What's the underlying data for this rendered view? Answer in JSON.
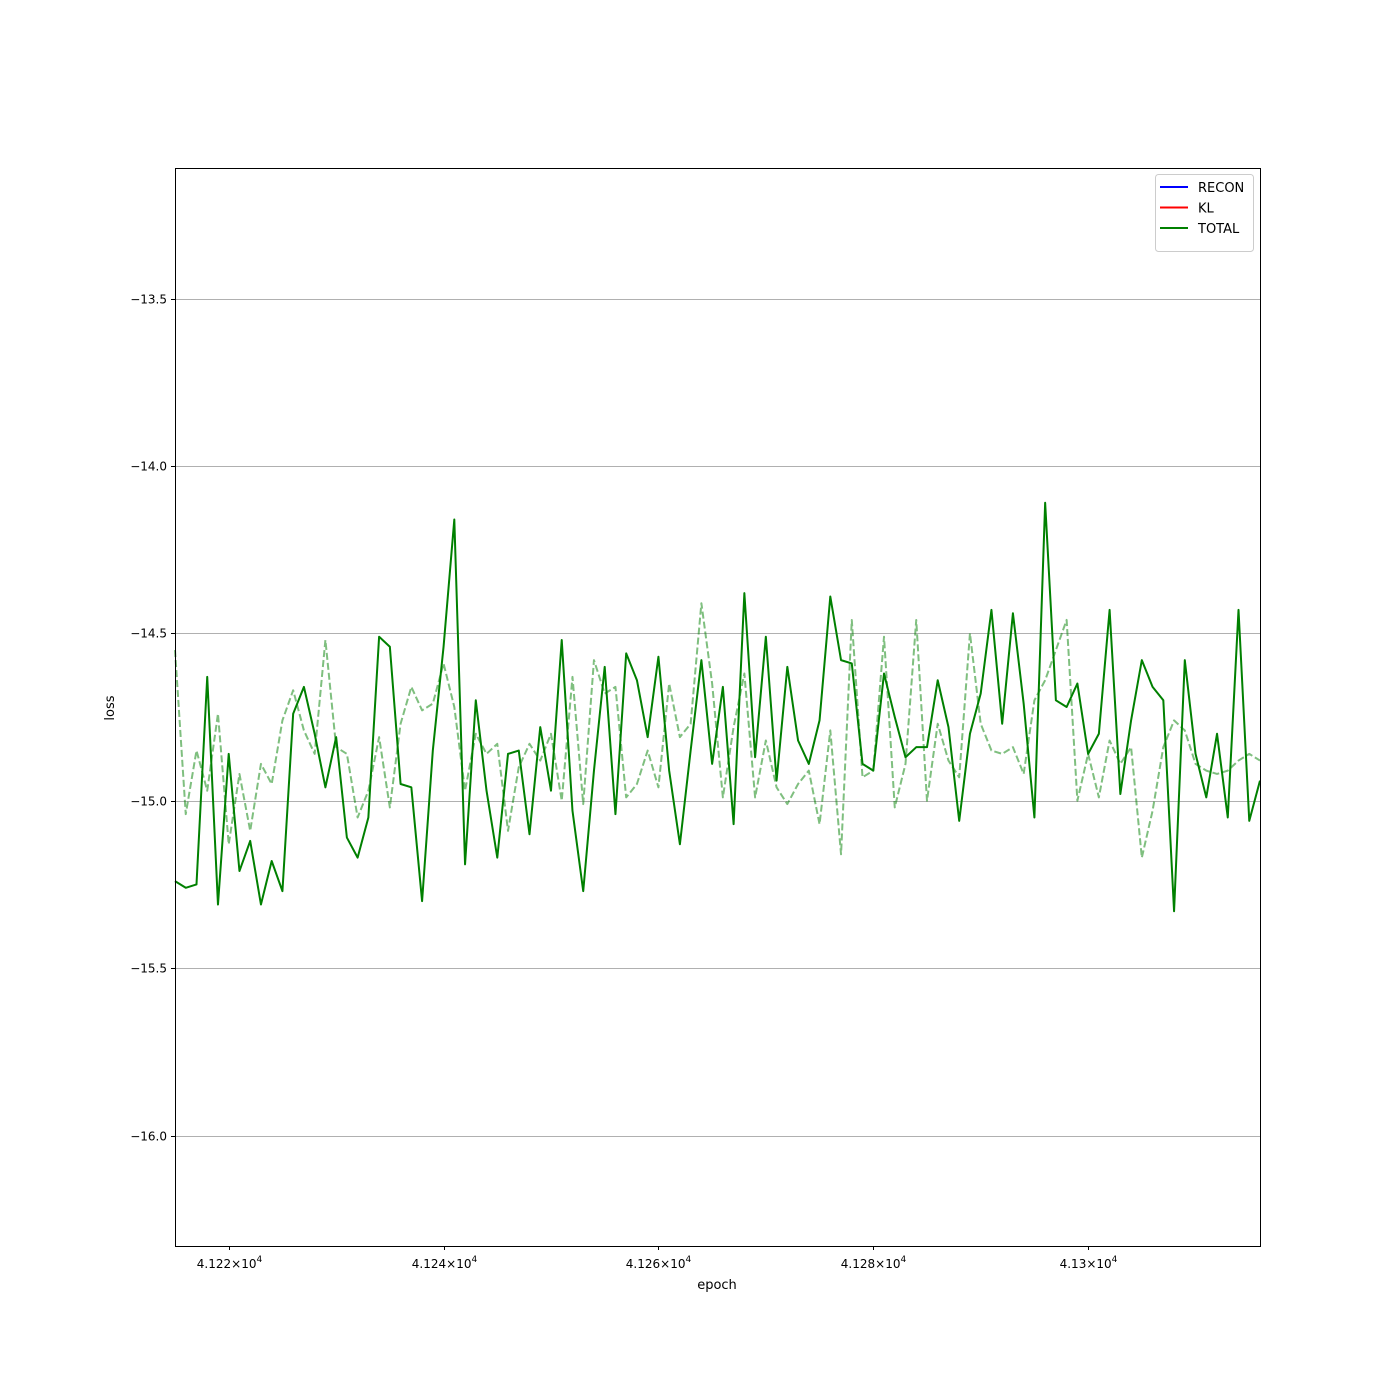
{
  "chart_data": {
    "type": "line",
    "xlabel": "epoch",
    "ylabel": "loss",
    "xlim": [
      41215,
      41316
    ],
    "ylim": [
      -16.33,
      -13.11
    ],
    "grid": "horizontal",
    "legend_position": "top-right",
    "legend": [
      {
        "label": "RECON",
        "color": "#0000ff"
      },
      {
        "label": "KL",
        "color": "#ff0000"
      },
      {
        "label": "TOTAL",
        "color": "#008000"
      }
    ],
    "x_ticks": [
      {
        "value": 41220,
        "mantissa": "4.122",
        "exponent": "4"
      },
      {
        "value": 41240,
        "mantissa": "4.124",
        "exponent": "4"
      },
      {
        "value": 41260,
        "mantissa": "4.126",
        "exponent": "4"
      },
      {
        "value": 41280,
        "mantissa": "4.128",
        "exponent": "4"
      },
      {
        "value": 41300,
        "mantissa": "4.13",
        "exponent": "4"
      }
    ],
    "y_ticks": [
      {
        "value": -13.5,
        "label": "−13.5"
      },
      {
        "value": -14.0,
        "label": "−14.0"
      },
      {
        "value": -14.5,
        "label": "−14.5"
      },
      {
        "value": -15.0,
        "label": "−15.0"
      },
      {
        "value": -15.5,
        "label": "−15.5"
      },
      {
        "value": -16.0,
        "label": "−16.0"
      }
    ],
    "x_start": 41215,
    "x_step": 1,
    "series": [
      {
        "name": "TOTAL",
        "color": "#008000",
        "style": "solid",
        "opacity": 1,
        "values": [
          -15.24,
          -15.26,
          -15.25,
          -14.63,
          -15.31,
          -14.86,
          -15.21,
          -15.12,
          -15.31,
          -15.18,
          -15.27,
          -14.74,
          -14.66,
          -14.8,
          -14.96,
          -14.81,
          -15.11,
          -15.17,
          -15.05,
          -14.51,
          -14.54,
          -14.95,
          -14.96,
          -15.3,
          -14.85,
          -14.54,
          -14.16,
          -15.19,
          -14.7,
          -14.97,
          -15.17,
          -14.86,
          -14.85,
          -15.1,
          -14.78,
          -14.97,
          -14.52,
          -15.03,
          -15.27,
          -14.91,
          -14.6,
          -15.04,
          -14.56,
          -14.64,
          -14.81,
          -14.57,
          -14.91,
          -15.13,
          -14.85,
          -14.58,
          -14.89,
          -14.66,
          -15.07,
          -14.38,
          -14.87,
          -14.51,
          -14.94,
          -14.6,
          -14.82,
          -14.89,
          -14.76,
          -14.39,
          -14.58,
          -14.59,
          -14.89,
          -14.91,
          -14.62,
          -14.75,
          -14.87,
          -14.84,
          -14.84,
          -14.64,
          -14.78,
          -15.06,
          -14.8,
          -14.68,
          -14.43,
          -14.77,
          -14.44,
          -14.71,
          -15.05,
          -14.11,
          -14.7,
          -14.72,
          -14.65,
          -14.86,
          -14.8,
          -14.43,
          -14.98,
          -14.76,
          -14.58,
          -14.66,
          -14.7,
          -15.33,
          -14.58,
          -14.86,
          -14.99,
          -14.8,
          -15.05,
          -14.43,
          -15.06,
          -14.94
        ]
      },
      {
        "name": "",
        "color": "#008000",
        "style": "dashed",
        "opacity": 0.5,
        "values": [
          -14.55,
          -15.04,
          -14.85,
          -14.97,
          -14.74,
          -15.13,
          -14.92,
          -15.09,
          -14.89,
          -14.95,
          -14.76,
          -14.67,
          -14.79,
          -14.86,
          -14.52,
          -14.84,
          -14.86,
          -15.05,
          -14.97,
          -14.81,
          -15.02,
          -14.77,
          -14.66,
          -14.73,
          -14.71,
          -14.59,
          -14.72,
          -14.97,
          -14.8,
          -14.86,
          -14.83,
          -15.09,
          -14.9,
          -14.83,
          -14.88,
          -14.8,
          -15.0,
          -14.63,
          -15.01,
          -14.58,
          -14.68,
          -14.66,
          -14.99,
          -14.95,
          -14.85,
          -14.96,
          -14.65,
          -14.81,
          -14.77,
          -14.41,
          -14.65,
          -14.99,
          -14.78,
          -14.62,
          -14.99,
          -14.82,
          -14.96,
          -15.01,
          -14.95,
          -14.91,
          -15.07,
          -14.79,
          -15.16,
          -14.46,
          -14.93,
          -14.91,
          -14.51,
          -15.02,
          -14.89,
          -14.46,
          -15.0,
          -14.77,
          -14.88,
          -14.93,
          -14.5,
          -14.77,
          -14.85,
          -14.86,
          -14.84,
          -14.92,
          -14.7,
          -14.64,
          -14.55,
          -14.46,
          -15.0,
          -14.86,
          -14.99,
          -14.82,
          -14.89,
          -14.84,
          -15.17,
          -15.03,
          -14.84,
          -14.76,
          -14.79,
          -14.89,
          -14.91,
          -14.92,
          -14.91,
          -14.88,
          -14.86,
          -14.88
        ]
      }
    ]
  }
}
